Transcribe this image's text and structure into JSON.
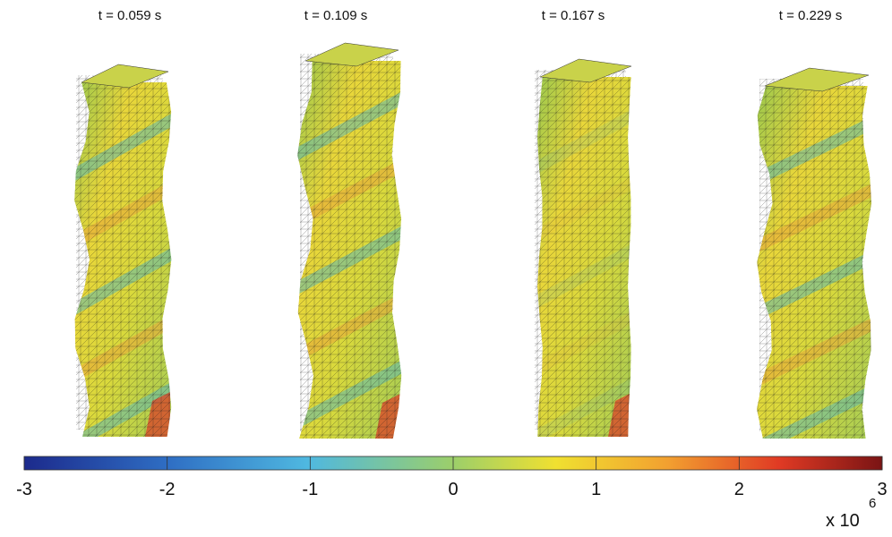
{
  "panels": [
    {
      "title": "t = 0.059 s"
    },
    {
      "title": "t = 0.109 s"
    },
    {
      "title": "t = 0.167 s"
    },
    {
      "title": "t = 0.229 s"
    }
  ],
  "colorbar": {
    "ticks": [
      -3,
      -2,
      -1,
      0,
      1,
      2,
      3
    ],
    "multiplier": "x 10",
    "exponent": "6"
  }
}
